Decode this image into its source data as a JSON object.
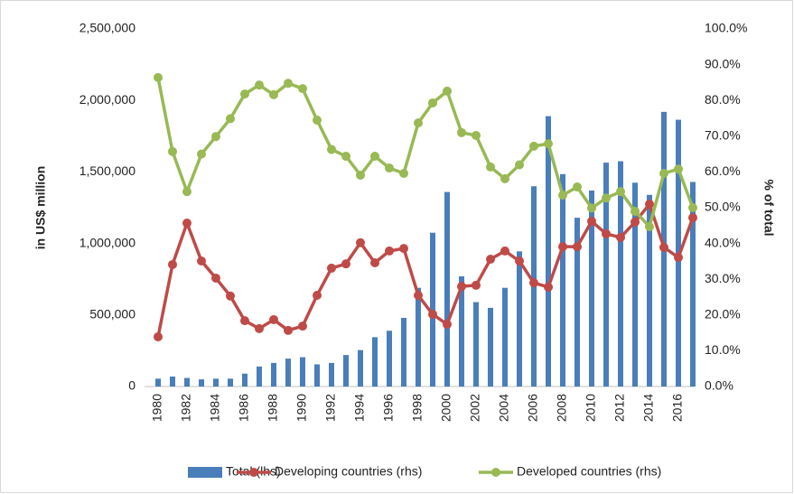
{
  "chart_data": {
    "type": "bar-line",
    "categories": [
      "1980",
      null,
      "1982",
      null,
      "1984",
      null,
      "1986",
      null,
      "1988",
      null,
      "1990",
      null,
      "1992",
      null,
      "1994",
      null,
      "1996",
      null,
      "1998",
      null,
      "2000",
      null,
      "2002",
      null,
      "2004",
      null,
      "2006",
      null,
      "2008",
      null,
      "2010",
      null,
      "2012",
      null,
      "2014",
      null,
      "2016",
      null
    ],
    "y_label": "in US$ million",
    "y2_label": "% of total",
    "ylim": [
      0,
      2500000
    ],
    "yticks": [
      0,
      {
        "value": 500000,
        "label": "500,000"
      },
      {
        "value": 1000000,
        "label": "1,000,000"
      },
      {
        "value": 1500000,
        "label": "1,500,000"
      },
      {
        "value": 2000000,
        "label": "2,000,000"
      },
      {
        "value": 2500000,
        "label": "2,500,000"
      }
    ],
    "y2lim": [
      0,
      100
    ],
    "y2ticks": [
      {
        "value": 0,
        "label": "0.0%"
      },
      {
        "value": 10,
        "label": "10.0%"
      },
      {
        "value": 20,
        "label": "20.0%"
      },
      {
        "value": 30,
        "label": "30.0%"
      },
      {
        "value": 40,
        "label": "40.0%"
      },
      {
        "value": 50,
        "label": "50.0%"
      },
      {
        "value": 60,
        "label": "60.0%"
      },
      {
        "value": 70,
        "label": "70.0%"
      },
      {
        "value": 80,
        "label": "80.0%"
      },
      {
        "value": 90,
        "label": "90.0%"
      },
      {
        "value": 100,
        "label": "100.0%"
      }
    ],
    "legend": "bottom",
    "series": [
      {
        "name": "Total (lhs)",
        "type": "bar",
        "color": "#4a7ebb",
        "values": [
          55000,
          70000,
          60000,
          50000,
          55000,
          55000,
          90000,
          140000,
          165000,
          195000,
          205000,
          155000,
          165000,
          220000,
          255000,
          345000,
          390000,
          480000,
          690000,
          1075000,
          1360000,
          770000,
          590000,
          550000,
          690000,
          945000,
          1400000,
          1890000,
          1485000,
          1180000,
          1370000,
          1565000,
          1575000,
          1425000,
          1340000,
          1920000,
          1865000,
          1430000
        ]
      },
      {
        "name": "Developing countries (rhs)",
        "type": "line",
        "axis": "y2",
        "color": "#be4b48",
        "values": [
          13.9,
          34.1,
          45.7,
          35.1,
          30.3,
          25.3,
          18.4,
          16.2,
          18.7,
          15.7,
          16.9,
          25.5,
          33.1,
          34.3,
          40.2,
          34.6,
          37.9,
          38.6,
          25.5,
          20.2,
          17.4,
          28.0,
          28.3,
          35.6,
          37.9,
          35.1,
          29.0,
          27.8,
          39.1,
          39.1,
          46.2,
          42.7,
          41.7,
          46.0,
          51.0,
          38.9,
          36.1,
          47.2
        ]
      },
      {
        "name": "Developed countries (rhs)",
        "type": "line",
        "axis": "y2",
        "color": "#98b954",
        "values": [
          86.4,
          65.7,
          54.5,
          65.0,
          69.9,
          74.9,
          81.8,
          84.3,
          81.6,
          84.8,
          83.3,
          74.5,
          66.3,
          64.4,
          59.1,
          64.4,
          61.1,
          59.6,
          73.7,
          79.3,
          82.6,
          71.0,
          70.2,
          61.4,
          58.1,
          62.0,
          67.2,
          67.9,
          53.5,
          55.8,
          49.9,
          52.7,
          54.5,
          49.0,
          44.7,
          59.6,
          60.8,
          50.0
        ]
      }
    ]
  }
}
